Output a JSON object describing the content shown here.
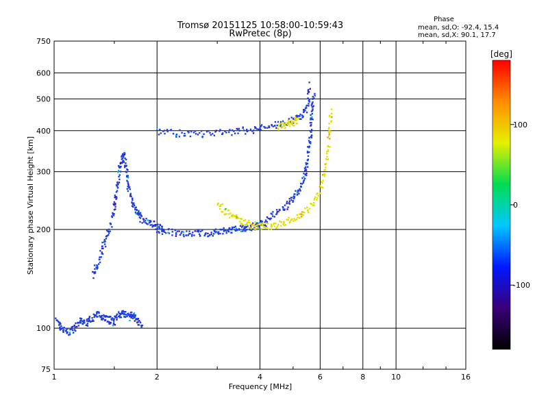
{
  "chart_data": {
    "type": "scatter",
    "title": "Tromsø 20151125 10:58:00-10:59:43",
    "subtitle": "RwPretec (8p)",
    "xlabel": "Frequency [MHz]",
    "ylabel": "Stationary phase Virtual Height [km]",
    "x_scale": "log2",
    "y_scale": "log",
    "xlim": [
      1,
      16
    ],
    "ylim": [
      75,
      750
    ],
    "x_ticks": [
      1,
      2,
      4,
      6,
      8,
      10,
      16
    ],
    "y_ticks": [
      75,
      100,
      200,
      300,
      400,
      500,
      600,
      750
    ],
    "grid": true,
    "stats": {
      "heading": "Phase",
      "line_o": "mean, sd,O: -92.4, 15.4",
      "line_x": "mean, sd,X: 90.1, 17.7"
    },
    "colorbar": {
      "label": "[deg]",
      "range": [
        -180,
        180
      ],
      "ticks": [
        100,
        0,
        -100
      ],
      "colors": [
        "#000000",
        "#3a0078",
        "#0018ff",
        "#00c8ff",
        "#00dc50",
        "#e6f000",
        "#ff8c00",
        "#ff0000"
      ]
    },
    "point_colors": {
      "o_mode": "#1f3fe0",
      "x_mode": "#e3e000",
      "low_trace": "#1f3fe0",
      "purple": "#4b10a8",
      "cyan": "#00b8e0",
      "orange": "#f0a000",
      "green": "#19c040"
    },
    "series": [
      {
        "mode": "O",
        "x": [
          1.02,
          1.05,
          1.1,
          1.15,
          1.2,
          1.25,
          1.3,
          1.35,
          1.4,
          1.45,
          1.5,
          1.55,
          1.6,
          1.65,
          1.7,
          1.75,
          1.8
        ],
        "y": [
          105,
          100,
          97,
          100,
          105,
          104,
          108,
          110,
          108,
          106,
          104,
          110,
          112,
          108,
          110,
          105,
          102
        ]
      },
      {
        "mode": "O",
        "x": [
          1.3,
          1.35,
          1.4,
          1.45,
          1.5,
          1.52,
          1.55,
          1.58,
          1.6,
          1.63,
          1.65,
          1.7,
          1.75,
          1.8,
          1.9,
          2.0,
          2.1
        ],
        "y": [
          145,
          160,
          180,
          200,
          230,
          260,
          300,
          330,
          340,
          300,
          270,
          240,
          225,
          215,
          210,
          205,
          200
        ]
      },
      {
        "mode": "O",
        "x": [
          2.0,
          2.2,
          2.4,
          2.6,
          2.8,
          3.0,
          3.2,
          3.4,
          3.6,
          3.8,
          4.0,
          4.2
        ],
        "y": [
          198,
          196,
          195,
          195,
          195,
          196,
          198,
          200,
          202,
          204,
          207,
          210
        ]
      },
      {
        "mode": "O",
        "x": [
          4.2,
          4.5,
          4.8,
          5.0,
          5.2,
          5.4,
          5.5,
          5.6,
          5.65,
          5.7,
          5.75
        ],
        "y": [
          215,
          225,
          235,
          250,
          265,
          290,
          320,
          370,
          420,
          470,
          520
        ]
      },
      {
        "mode": "O",
        "x": [
          2.0,
          2.3,
          2.6,
          3.0,
          3.4,
          3.8,
          4.2,
          4.6,
          5.0,
          5.3,
          5.5,
          5.6
        ],
        "y": [
          400,
          392,
          390,
          393,
          397,
          403,
          410,
          420,
          430,
          445,
          470,
          560
        ]
      },
      {
        "mode": "X",
        "x": [
          3.0,
          3.2,
          3.4,
          3.6,
          3.8,
          4.0,
          4.3,
          4.6,
          5.0,
          5.4,
          5.8,
          6.1,
          6.3,
          6.4,
          6.45
        ],
        "y": [
          240,
          225,
          218,
          210,
          206,
          204,
          205,
          208,
          215,
          225,
          245,
          280,
          330,
          400,
          460
        ]
      },
      {
        "mode": "X",
        "x": [
          4.5,
          4.8,
          5.0,
          5.2
        ],
        "y": [
          410,
          418,
          425,
          432
        ]
      }
    ]
  }
}
